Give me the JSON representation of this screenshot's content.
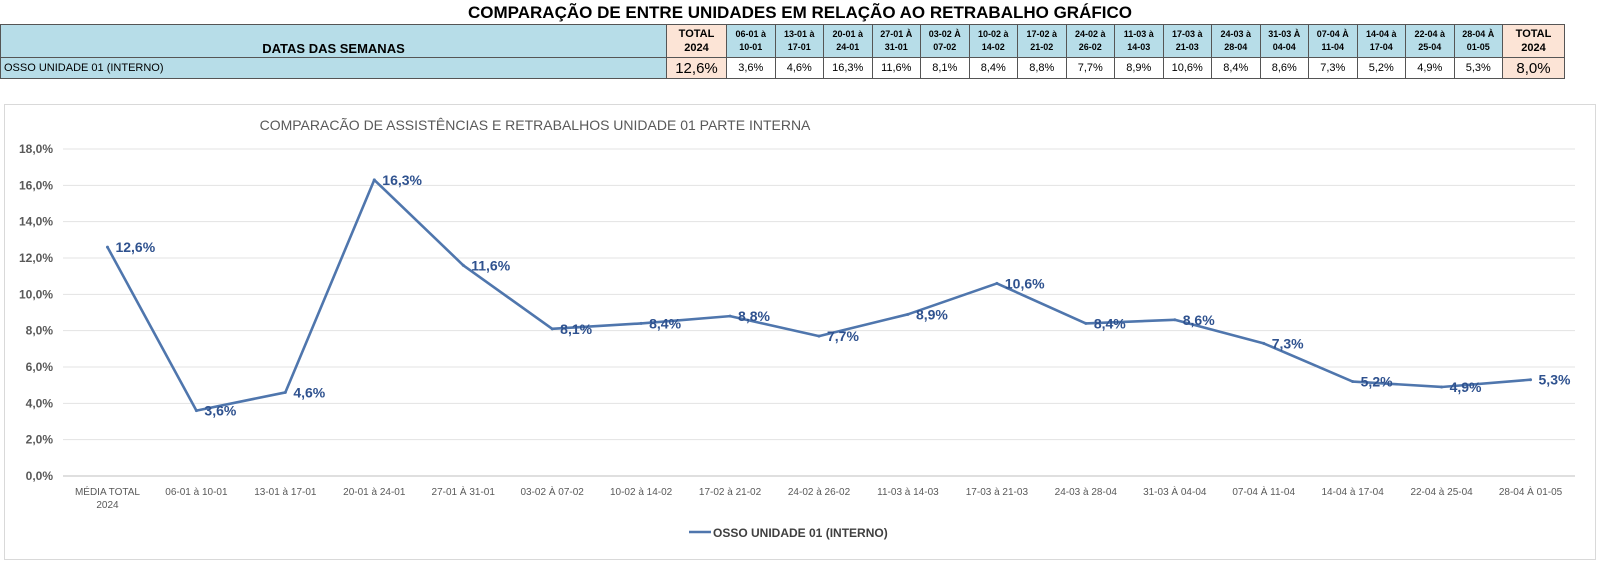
{
  "page_title": "COMPARAÇÃO DE ENTRE UNIDADES EM RELAÇÃO AO RETRABALHO GRÁFICO",
  "table": {
    "header_label": "DATAS DAS SEMANAS",
    "total_start": [
      "TOTAL",
      "2024"
    ],
    "total_end": [
      "TOTAL",
      "2024"
    ],
    "weeks": [
      [
        "06-01 à",
        "10-01"
      ],
      [
        "13-01 à",
        "17-01"
      ],
      [
        "20-01 à",
        "24-01"
      ],
      [
        "27-01 À",
        "31-01"
      ],
      [
        "03-02 À",
        "07-02"
      ],
      [
        "10-02 à",
        "14-02"
      ],
      [
        "17-02 à",
        "21-02"
      ],
      [
        "24-02 à",
        "26-02"
      ],
      [
        "11-03 à",
        "14-03"
      ],
      [
        "17-03 à",
        "21-03"
      ],
      [
        "24-03 à",
        "28-04"
      ],
      [
        "31-03 À",
        "04-04"
      ],
      [
        "07-04 À",
        "11-04"
      ],
      [
        "14-04 à",
        "17-04"
      ],
      [
        "22-04 à",
        "25-04"
      ],
      [
        "28-04 À",
        "01-05"
      ]
    ],
    "row_label": "OSSO UNIDADE 01 (INTERNO)",
    "total_start_value": "12,6%",
    "week_values": [
      "3,6%",
      "4,6%",
      "16,3%",
      "11,6%",
      "8,1%",
      "8,4%",
      "8,8%",
      "7,7%",
      "8,9%",
      "10,6%",
      "8,4%",
      "8,6%",
      "7,3%",
      "5,2%",
      "4,9%",
      "5,3%"
    ],
    "total_end_value": "8,0%"
  },
  "colors": {
    "line": "#4f76ad",
    "label": "#2f528f",
    "header_blue": "#b7dde8",
    "header_peach": "#fce4d6"
  },
  "chart_data": {
    "type": "line",
    "title": "COMPARACÃO DE ASSISTÊNCIAS E RETRABALHOS UNIDADE 01 PARTE INTERNA",
    "categories": [
      "MÉDIA TOTAL 2024",
      "06-01 à 10-01",
      "13-01 à 17-01",
      "20-01 à 24-01",
      "27-01 À 31-01",
      "03-02 À 07-02",
      "10-02 à 14-02",
      "17-02 à 21-02",
      "24-02 à 26-02",
      "11-03 à 14-03",
      "17-03 à 21-03",
      "24-03 à 28-04",
      "31-03 À 04-04",
      "07-04 À 11-04",
      "14-04 à 17-04",
      "22-04 à 25-04",
      "28-04 À 01-05"
    ],
    "series": [
      {
        "name": "OSSO UNIDADE 01 (INTERNO)",
        "values": [
          12.6,
          3.6,
          4.6,
          16.3,
          11.6,
          8.1,
          8.4,
          8.8,
          7.7,
          8.9,
          10.6,
          8.4,
          8.6,
          7.3,
          5.2,
          4.9,
          5.3
        ],
        "labels": [
          "12,6%",
          "3,6%",
          "4,6%",
          "16,3%",
          "11,6%",
          "8,1%",
          "8,4%",
          "8,8%",
          "7,7%",
          "8,9%",
          "10,6%",
          "8,4%",
          "8,6%",
          "7,3%",
          "5,2%",
          "4,9%",
          "5,3%"
        ]
      }
    ],
    "y_ticks": [
      "0,0%",
      "2,0%",
      "4,0%",
      "6,0%",
      "8,0%",
      "10,0%",
      "12,0%",
      "14,0%",
      "16,0%",
      "18,0%"
    ],
    "ylim": [
      0,
      18
    ],
    "grid": true,
    "legend": "bottom-center"
  }
}
